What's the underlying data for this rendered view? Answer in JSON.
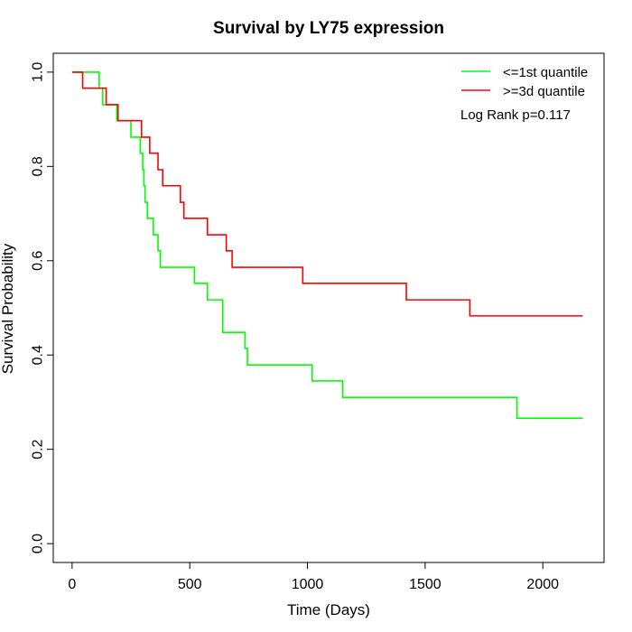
{
  "chart_data": {
    "type": "line",
    "step": true,
    "title": "Survival by LY75 expression",
    "xlabel": "Time (Days)",
    "ylabel": "Survival Probability",
    "xlim": [
      -80,
      2260
    ],
    "ylim": [
      -0.04,
      1.04
    ],
    "x_ticks": [
      0,
      500,
      1000,
      1500,
      2000
    ],
    "x_tick_labels": [
      "0",
      "500",
      "1000",
      "1500",
      "2000"
    ],
    "y_ticks": [
      0.0,
      0.2,
      0.4,
      0.6,
      0.8,
      1.0
    ],
    "y_tick_labels": [
      "0.0",
      "0.2",
      "0.4",
      "0.6",
      "0.8",
      "1.0"
    ],
    "grid": false,
    "legend_position": "top-right",
    "annotation": "Log Rank p=0.117",
    "series": [
      {
        "name": "<=1st quantile",
        "color": "#00ff00",
        "x": [
          0,
          115,
          130,
          190,
          250,
          290,
          300,
          305,
          310,
          320,
          345,
          365,
          375,
          400,
          520,
          575,
          640,
          735,
          745,
          1020,
          1150,
          1890,
          2170
        ],
        "y": [
          1.0,
          0.966,
          0.931,
          0.897,
          0.862,
          0.828,
          0.793,
          0.759,
          0.724,
          0.69,
          0.655,
          0.621,
          0.586,
          0.586,
          0.552,
          0.517,
          0.448,
          0.414,
          0.379,
          0.345,
          0.31,
          0.266,
          0.266
        ]
      },
      {
        "name": ">=3d quantile",
        "color": "#ff0000",
        "x": [
          0,
          45,
          145,
          195,
          295,
          330,
          365,
          385,
          460,
          475,
          575,
          655,
          680,
          980,
          1420,
          1690,
          2170
        ],
        "y": [
          1.0,
          0.966,
          0.931,
          0.897,
          0.862,
          0.828,
          0.793,
          0.759,
          0.724,
          0.69,
          0.655,
          0.621,
          0.586,
          0.552,
          0.517,
          0.483,
          0.483
        ]
      }
    ]
  }
}
